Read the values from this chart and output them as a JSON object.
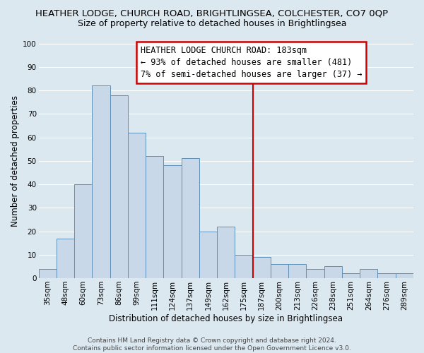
{
  "title": "HEATHER LODGE, CHURCH ROAD, BRIGHTLINGSEA, COLCHESTER, CO7 0QP",
  "subtitle": "Size of property relative to detached houses in Brightlingsea",
  "xlabel": "Distribution of detached houses by size in Brightlingsea",
  "ylabel": "Number of detached properties",
  "categories": [
    "35sqm",
    "48sqm",
    "60sqm",
    "73sqm",
    "86sqm",
    "99sqm",
    "111sqm",
    "124sqm",
    "137sqm",
    "149sqm",
    "162sqm",
    "175sqm",
    "187sqm",
    "200sqm",
    "213sqm",
    "226sqm",
    "238sqm",
    "251sqm",
    "264sqm",
    "276sqm",
    "289sqm"
  ],
  "values": [
    4,
    17,
    40,
    82,
    78,
    62,
    52,
    48,
    51,
    20,
    22,
    10,
    9,
    6,
    6,
    4,
    5,
    2,
    4,
    2,
    2
  ],
  "bar_color": "#c8d8e8",
  "bar_edge_color": "#6090b8",
  "ylim": [
    0,
    100
  ],
  "vline_x_index": 11.5,
  "annotation_box_text": "HEATHER LODGE CHURCH ROAD: 183sqm\n← 93% of detached houses are smaller (481)\n7% of semi-detached houses are larger (37) →",
  "annotation_box_color": "#ffffff",
  "annotation_box_edge_color": "#cc0000",
  "vline_color": "#cc0000",
  "footer_line1": "Contains HM Land Registry data © Crown copyright and database right 2024.",
  "footer_line2": "Contains public sector information licensed under the Open Government Licence v3.0.",
  "background_color": "#dce8f0",
  "grid_color": "#ffffff",
  "title_fontsize": 9.5,
  "subtitle_fontsize": 9,
  "axis_label_fontsize": 8.5,
  "tick_fontsize": 7.5,
  "annotation_fontsize": 8.5,
  "footer_fontsize": 6.5
}
